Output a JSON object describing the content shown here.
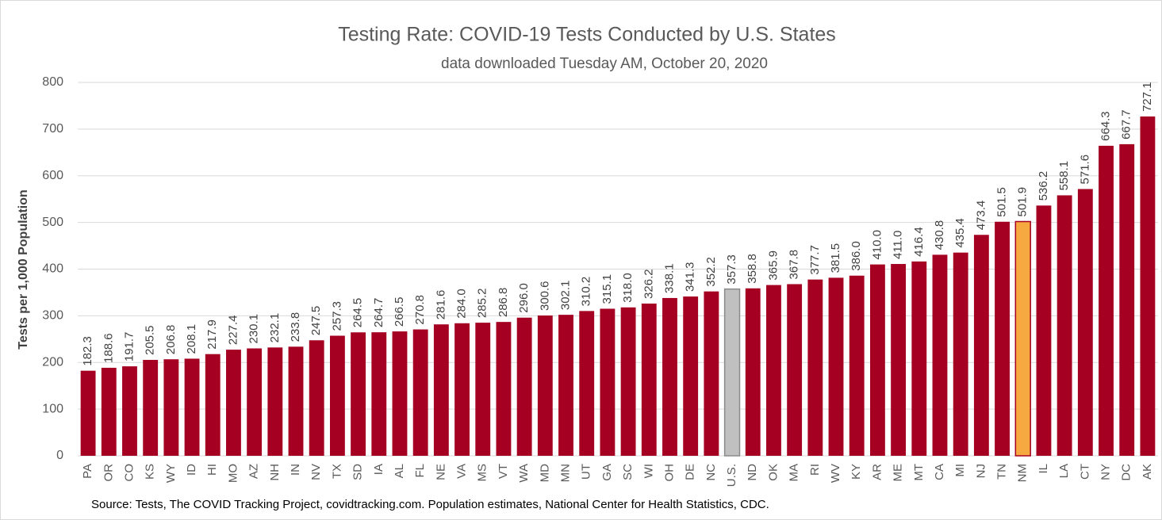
{
  "chart_data": {
    "type": "bar",
    "title": "Testing Rate: COVID-19 Tests Conducted by U.S. States",
    "subtitle": "data downloaded Tuesday AM, October 20, 2020",
    "y_label": "Tests per 1,000 Population",
    "source": "Source: Tests, The COVID Tracking Project, covidtracking.com. Population estimates, National Center for Health Statistics, CDC.",
    "categories": [
      "PA",
      "OR",
      "CO",
      "KS",
      "WY",
      "ID",
      "HI",
      "MO",
      "AZ",
      "NH",
      "IN",
      "NV",
      "TX",
      "SD",
      "IA",
      "AL",
      "FL",
      "NE",
      "VA",
      "MS",
      "VT",
      "WA",
      "MD",
      "MN",
      "UT",
      "GA",
      "SC",
      "WI",
      "OH",
      "DE",
      "NC",
      "U.S.",
      "ND",
      "OK",
      "MA",
      "RI",
      "WV",
      "KY",
      "AR",
      "ME",
      "MT",
      "CA",
      "MI",
      "NJ",
      "TN",
      "NM",
      "IL",
      "LA",
      "CT",
      "NY",
      "DC",
      "AK"
    ],
    "values": [
      182.3,
      188.6,
      191.7,
      205.5,
      206.8,
      208.1,
      217.9,
      227.4,
      230.1,
      232.1,
      233.8,
      247.5,
      257.3,
      264.5,
      264.7,
      266.5,
      270.8,
      281.6,
      284.0,
      285.2,
      286.8,
      296.0,
      300.6,
      302.1,
      310.2,
      315.1,
      318.0,
      326.2,
      338.1,
      341.3,
      352.2,
      357.3,
      358.8,
      365.9,
      367.8,
      377.7,
      381.5,
      386.0,
      410.0,
      411.0,
      416.4,
      430.8,
      435.4,
      473.4,
      501.5,
      501.9,
      536.2,
      558.1,
      571.6,
      664.3,
      667.7,
      727.1
    ],
    "value_labels": [
      "182.3",
      "188.6",
      "191.7",
      "205.5",
      "206.8",
      "208.1",
      "217.9",
      "227.4",
      "230.1",
      "232.1",
      "233.8",
      "247.5",
      "257.3",
      "264.5",
      "264.7",
      "266.5",
      "270.8",
      "281.6",
      "284.0",
      "285.2",
      "286.8",
      "296.0",
      "300.6",
      "302.1",
      "310.2",
      "315.1",
      "318.0",
      "326.2",
      "338.1",
      "341.3",
      "352.2",
      "357.3",
      "358.8",
      "365.9",
      "367.8",
      "377.7",
      "381.5",
      "386.0",
      "410.0",
      "411.0",
      "416.4",
      "430.8",
      "435.4",
      "473.4",
      "501.5",
      "501.9",
      "536.2",
      "558.1",
      "571.6",
      "664.3",
      "667.7",
      "727.1"
    ],
    "color": "#a50021",
    "highlight_colors": {
      "U.S.": "#c0c0c0",
      "NM": "#f7a941"
    },
    "ylim": [
      0,
      800
    ],
    "yticks": [
      0,
      100,
      200,
      300,
      400,
      500,
      600,
      700,
      800
    ],
    "grid": true
  }
}
